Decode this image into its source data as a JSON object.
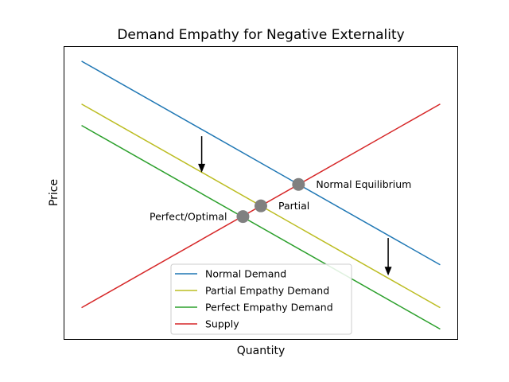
{
  "chart_data": {
    "type": "line",
    "title": "Demand Empathy for Negative Externality",
    "xlabel": "Quantity",
    "ylabel": "Price",
    "xlim": [
      -0.5,
      10.5
    ],
    "ylim": [
      0,
      13.7
    ],
    "x_ticks_visible": false,
    "y_ticks_visible": false,
    "grid": false,
    "legend_position": "lower center",
    "series": [
      {
        "name": "Normal Demand",
        "color": "#1f77b4",
        "x": [
          0,
          10
        ],
        "y": [
          13,
          3.5
        ]
      },
      {
        "name": "Partial Empathy Demand",
        "color": "#bcbd22",
        "x": [
          0,
          10
        ],
        "y": [
          11,
          1.5
        ]
      },
      {
        "name": "Perfect Empathy Demand",
        "color": "#2ca02c",
        "x": [
          0,
          10
        ],
        "y": [
          10,
          0.5
        ]
      },
      {
        "name": "Supply",
        "color": "#d62728",
        "x": [
          0,
          10
        ],
        "y": [
          1.5,
          11
        ]
      }
    ],
    "points": [
      {
        "label": "Normal Equilibrium",
        "x": 6.05,
        "y": 7.25,
        "label_side": "right"
      },
      {
        "label": "Partial",
        "x": 5.0,
        "y": 6.25,
        "label_side": "right"
      },
      {
        "label": "Perfect/Optimal",
        "x": 4.5,
        "y": 5.75,
        "label_side": "left"
      }
    ],
    "arrows": [
      {
        "x": 3.35,
        "y_from": 9.5,
        "y_to": 7.8,
        "color": "#000000"
      },
      {
        "x": 8.55,
        "y_from": 4.75,
        "y_to": 3.0,
        "color": "#000000"
      }
    ],
    "point_color": "#808080"
  }
}
